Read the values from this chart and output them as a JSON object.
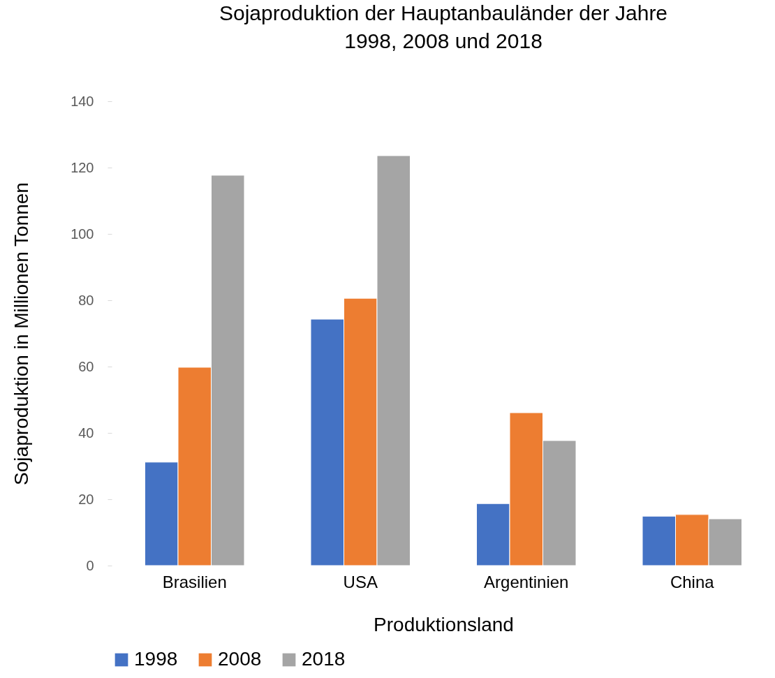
{
  "chart_data": {
    "type": "bar",
    "title": "Sojaproduktion der Hauptanbauländer der Jahre\n1998, 2008 und 2018",
    "xlabel": "Produktionsland",
    "ylabel": "Sojaproduktion in Millionen Tonnen",
    "categories": [
      "Brasilien",
      "USA",
      "Argentinien",
      "China"
    ],
    "series": [
      {
        "name": "1998",
        "color": "#4472c4",
        "values": [
          31.2,
          74.3,
          18.7,
          14.9
        ]
      },
      {
        "name": "2008",
        "color": "#ed7d31",
        "values": [
          59.8,
          80.6,
          46.1,
          15.4
        ]
      },
      {
        "name": "2018",
        "color": "#a5a5a5",
        "values": [
          117.7,
          123.6,
          37.7,
          14.1
        ]
      }
    ],
    "ylim": [
      0,
      140
    ],
    "yticks": [
      0,
      20,
      40,
      60,
      80,
      100,
      120,
      140
    ],
    "grid": false,
    "legend": "bottom"
  }
}
